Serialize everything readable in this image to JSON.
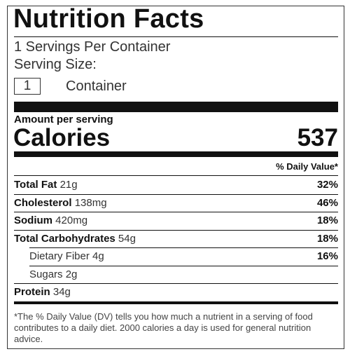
{
  "title": "Nutrition Facts",
  "servings_per_container": "1 Servings Per Container",
  "serving_size_label": "Serving Size:",
  "serving_size_quantity": "1",
  "serving_size_unit": "Container",
  "amount_per_serving": "Amount per serving",
  "calories_label": "Calories",
  "calories": 537,
  "daily_value_header": "% Daily Value*",
  "nutrients": [
    {
      "name": "Total Fat",
      "amount": "21g",
      "daily_value": "32%"
    },
    {
      "name": "Cholesterol",
      "amount": "138mg",
      "daily_value": "46%"
    },
    {
      "name": "Sodium",
      "amount": "420mg",
      "daily_value": "18%"
    },
    {
      "name": "Total Carbohydrates",
      "amount": "54g",
      "daily_value": "18%",
      "sub_nutrients": [
        {
          "name": "Dietary Fiber",
          "amount": "4g",
          "daily_value": "16%"
        },
        {
          "name": "Sugars",
          "amount": "2g"
        }
      ]
    },
    {
      "name": "Protein",
      "amount": "34g"
    }
  ],
  "footnote": "*The % Daily Value (DV) tells you how much a nutrient in a serving of food contributes to a daily diet. 2000 calories a day is used for general nutrition advice."
}
